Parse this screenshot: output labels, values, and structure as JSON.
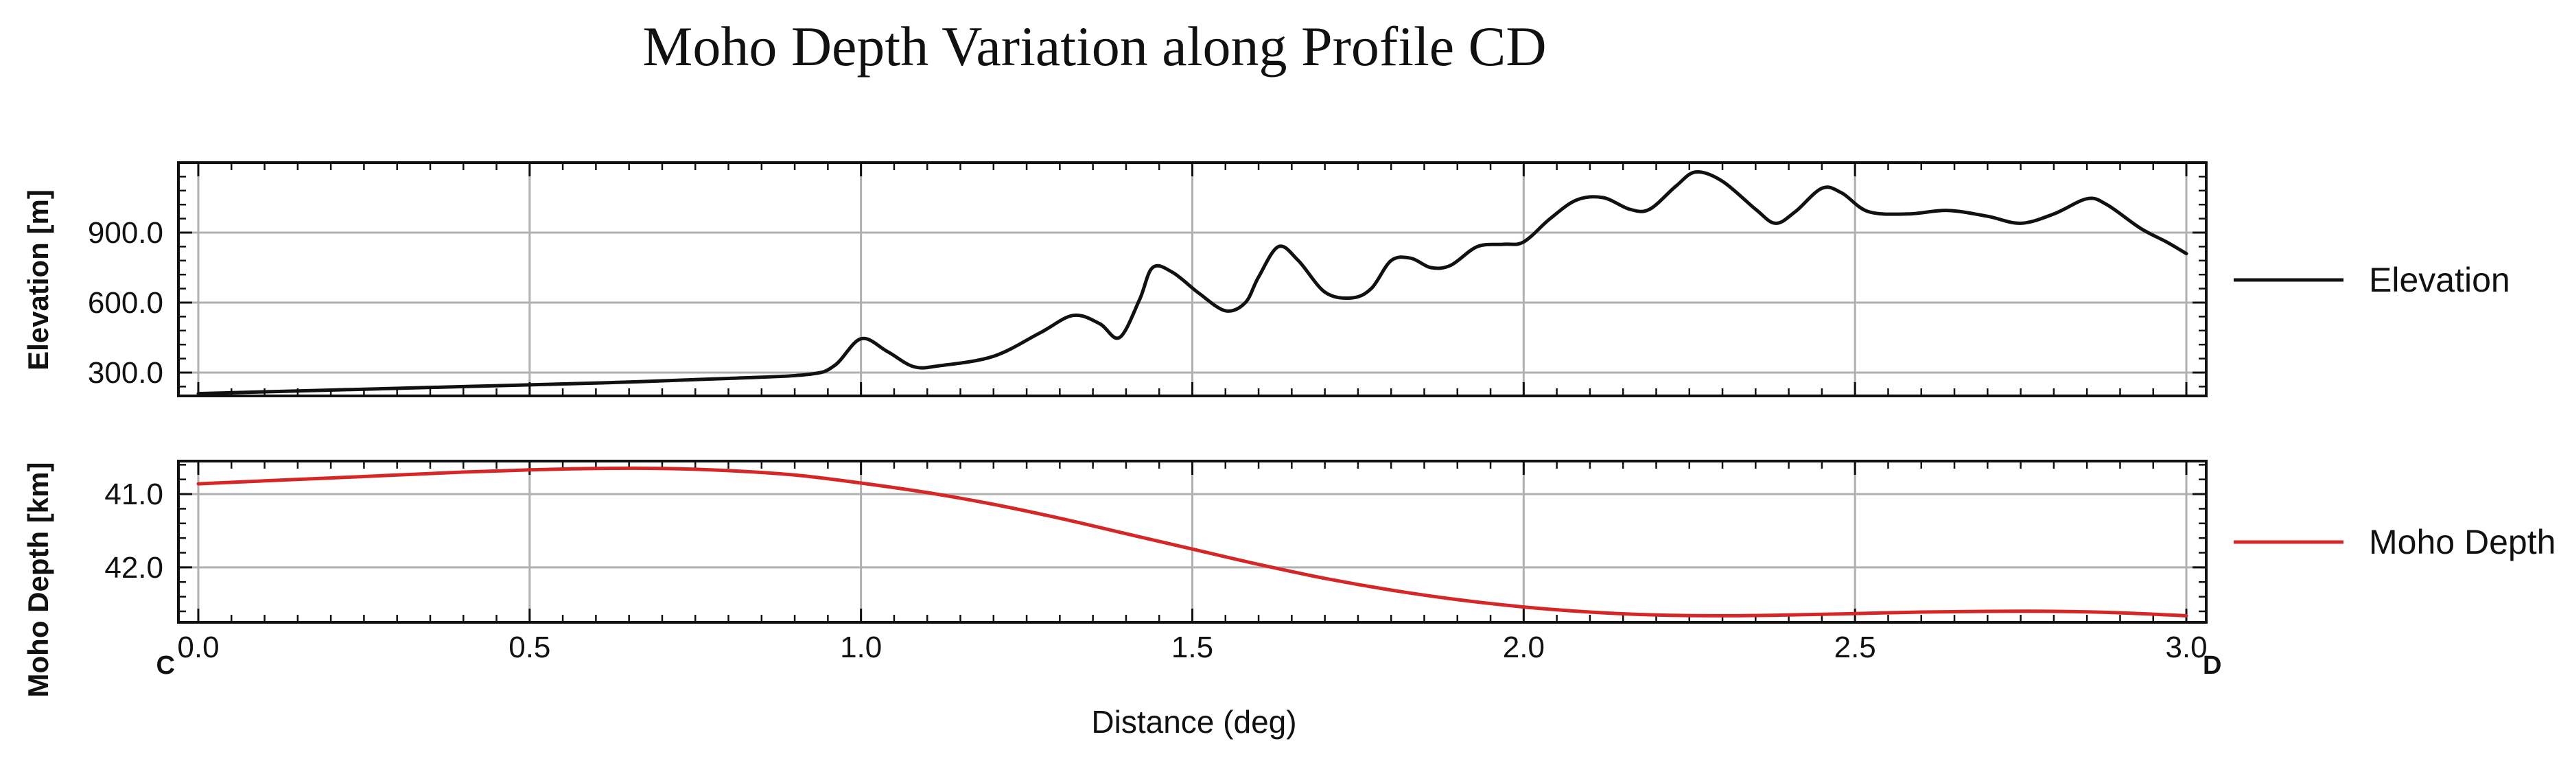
{
  "chart_data": [
    {
      "type": "line",
      "title": "Moho Depth Variation along Profile CD",
      "ylabel": "Elevation [m]",
      "xlim": [
        -0.03,
        3.03
      ],
      "ylim": [
        200,
        1200
      ],
      "grid": true,
      "x_ticks": [
        "0.0",
        "0.5",
        "1.0",
        "1.5",
        "2.0",
        "2.5",
        "3.0"
      ],
      "x_tick_values": [
        0.0,
        0.5,
        1.0,
        1.5,
        2.0,
        2.5,
        3.0
      ],
      "y_ticks": [
        "300.0",
        "600.0",
        "900.0"
      ],
      "y_tick_values": [
        300,
        600,
        900
      ],
      "legend_position": "right",
      "series": [
        {
          "name": "Elevation",
          "color": "#111111",
          "points": [
            [
              0.0,
              210
            ],
            [
              0.2,
              225
            ],
            [
              0.4,
              240
            ],
            [
              0.6,
              255
            ],
            [
              0.8,
              275
            ],
            [
              0.92,
              292
            ],
            [
              0.96,
              330
            ],
            [
              1.0,
              445
            ],
            [
              1.04,
              390
            ],
            [
              1.08,
              325
            ],
            [
              1.12,
              330
            ],
            [
              1.2,
              370
            ],
            [
              1.27,
              470
            ],
            [
              1.32,
              545
            ],
            [
              1.36,
              510
            ],
            [
              1.39,
              450
            ],
            [
              1.42,
              610
            ],
            [
              1.44,
              750
            ],
            [
              1.47,
              730
            ],
            [
              1.51,
              640
            ],
            [
              1.55,
              565
            ],
            [
              1.58,
              600
            ],
            [
              1.6,
              710
            ],
            [
              1.63,
              840
            ],
            [
              1.66,
              780
            ],
            [
              1.7,
              645
            ],
            [
              1.74,
              620
            ],
            [
              1.77,
              660
            ],
            [
              1.8,
              780
            ],
            [
              1.83,
              790
            ],
            [
              1.86,
              750
            ],
            [
              1.89,
              760
            ],
            [
              1.93,
              840
            ],
            [
              1.97,
              850
            ],
            [
              2.0,
              860
            ],
            [
              2.04,
              960
            ],
            [
              2.08,
              1040
            ],
            [
              2.12,
              1050
            ],
            [
              2.16,
              1000
            ],
            [
              2.19,
              1000
            ],
            [
              2.23,
              1100
            ],
            [
              2.26,
              1160
            ],
            [
              2.3,
              1120
            ],
            [
              2.35,
              1000
            ],
            [
              2.38,
              940
            ],
            [
              2.41,
              990
            ],
            [
              2.45,
              1090
            ],
            [
              2.48,
              1070
            ],
            [
              2.52,
              990
            ],
            [
              2.58,
              980
            ],
            [
              2.64,
              995
            ],
            [
              2.7,
              970
            ],
            [
              2.75,
              940
            ],
            [
              2.8,
              980
            ],
            [
              2.85,
              1045
            ],
            [
              2.88,
              1020
            ],
            [
              2.93,
              920
            ],
            [
              2.97,
              860
            ],
            [
              3.0,
              810
            ]
          ]
        }
      ]
    },
    {
      "type": "line",
      "ylabel": "Moho Depth [km]",
      "xlabel": "Distance (deg)",
      "xlim": [
        -0.03,
        3.03
      ],
      "ylim": [
        42.75,
        40.55
      ],
      "y_inverted": true,
      "grid": true,
      "x_ticks": [
        "0.0",
        "0.5",
        "1.0",
        "1.5",
        "2.0",
        "2.5",
        "3.0"
      ],
      "x_tick_values": [
        0.0,
        0.5,
        1.0,
        1.5,
        2.0,
        2.5,
        3.0
      ],
      "y_ticks": [
        "41.0",
        "42.0"
      ],
      "y_tick_values": [
        41.0,
        42.0
      ],
      "legend_position": "right",
      "start_label": "C",
      "end_label": "D",
      "series": [
        {
          "name": "Moho Depth",
          "color": "#d62728",
          "points": [
            [
              0.0,
              40.86
            ],
            [
              0.1,
              40.82
            ],
            [
              0.2,
              40.78
            ],
            [
              0.3,
              40.74
            ],
            [
              0.4,
              40.7
            ],
            [
              0.5,
              40.67
            ],
            [
              0.6,
              40.65
            ],
            [
              0.7,
              40.65
            ],
            [
              0.8,
              40.68
            ],
            [
              0.9,
              40.74
            ],
            [
              1.0,
              40.85
            ],
            [
              1.1,
              40.98
            ],
            [
              1.2,
              41.14
            ],
            [
              1.3,
              41.33
            ],
            [
              1.4,
              41.54
            ],
            [
              1.5,
              41.75
            ],
            [
              1.6,
              41.96
            ],
            [
              1.7,
              42.15
            ],
            [
              1.8,
              42.31
            ],
            [
              1.9,
              42.44
            ],
            [
              2.0,
              42.54
            ],
            [
              2.1,
              42.61
            ],
            [
              2.2,
              42.65
            ],
            [
              2.3,
              42.66
            ],
            [
              2.4,
              42.65
            ],
            [
              2.5,
              42.63
            ],
            [
              2.6,
              42.61
            ],
            [
              2.7,
              42.6
            ],
            [
              2.8,
              42.6
            ],
            [
              2.9,
              42.62
            ],
            [
              3.0,
              42.66
            ]
          ]
        }
      ]
    }
  ]
}
